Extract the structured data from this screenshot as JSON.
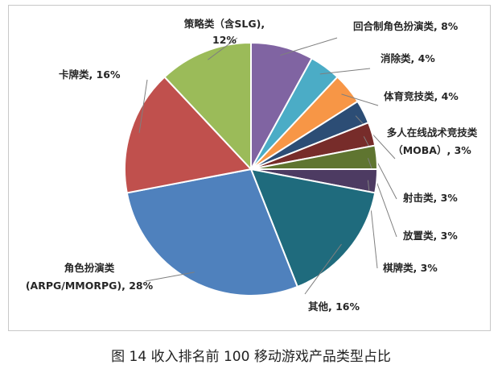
{
  "chart_data": {
    "type": "pie",
    "start_angle_deg": 0,
    "direction": "clockwise",
    "slices": [
      {
        "label": "回合制角色扮演类",
        "value": 8,
        "color": "#8064a2",
        "label_text": [
          "回合制角色扮演类, 8%"
        ]
      },
      {
        "label": "消除类",
        "value": 4,
        "color": "#4bacc6",
        "label_text": [
          "消除类, 4%"
        ]
      },
      {
        "label": "体育竞技类",
        "value": 4,
        "color": "#f79646",
        "label_text": [
          "体育竞技类, 4%"
        ]
      },
      {
        "label": "多人在线战术竞技类（MOBA）",
        "value": 3,
        "color": "#2c4d75",
        "label_text": [
          "多人在线战术竞技类",
          "（MOBA）, 3%"
        ]
      },
      {
        "label": "射击类",
        "value": 3,
        "color": "#772c2a",
        "label_text": [
          "射击类, 3%"
        ]
      },
      {
        "label": "放置类",
        "value": 3,
        "color": "#5f7530",
        "label_text": [
          "放置类, 3%"
        ]
      },
      {
        "label": "棋牌类",
        "value": 3,
        "color": "#4d3b62",
        "label_text": [
          "棋牌类, 3%"
        ]
      },
      {
        "label": "其他",
        "value": 16,
        "color": "#1f6b7d",
        "label_text": [
          "其他, 16%"
        ]
      },
      {
        "label": "角色扮演类（ARPG/MMORPG）",
        "value": 28,
        "color": "#4f81bd",
        "label_text": [
          "角色扮演类",
          "(ARPG/MMORPG), 28%"
        ]
      },
      {
        "label": "卡牌类",
        "value": 16,
        "color": "#c0504d",
        "label_text": [
          "卡牌类, 16%"
        ]
      },
      {
        "label": "策略类（含SLG）",
        "value": 12,
        "color": "#9bbb59",
        "label_text": [
          "策略类（含SLG),",
          "12%"
        ]
      }
    ]
  },
  "caption": "图 14  收入排名前 100 移动游戏产品类型占比"
}
